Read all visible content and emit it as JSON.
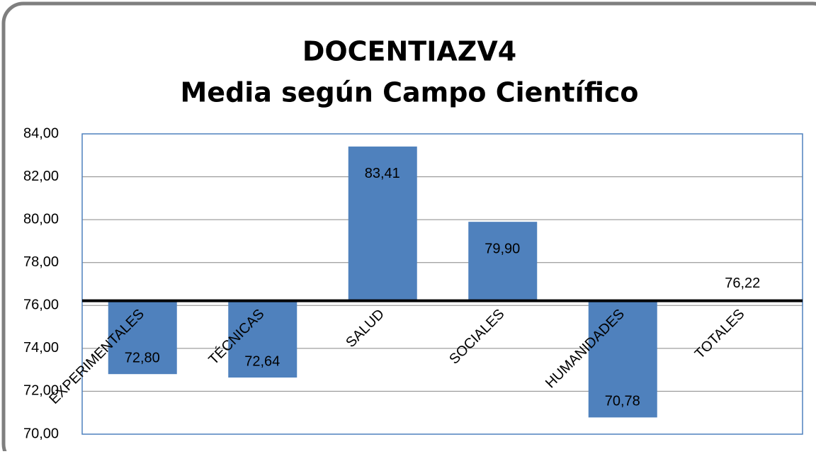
{
  "chart_data": {
    "type": "bar",
    "title": "DOCENTIAZV4",
    "subtitle": "Media según Campo Científico",
    "categories": [
      "EXPERIMENTALES",
      "TÉCNICAS",
      "SALUD",
      "SOCIALES",
      "HUMANIDADES",
      "TOTALES"
    ],
    "values": [
      72.8,
      72.64,
      83.41,
      79.9,
      70.78,
      76.22
    ],
    "value_labels": [
      "72,80",
      "72,64",
      "83,41",
      "79,90",
      "70,78",
      "76,22"
    ],
    "color": "#4f81bd",
    "baseline": 76.22,
    "ylim": [
      70,
      84
    ],
    "yticks": [
      {
        "value": 70,
        "label": "70,00"
      },
      {
        "value": 72,
        "label": "72,00"
      },
      {
        "value": 74,
        "label": "74,00"
      },
      {
        "value": 76,
        "label": "76,00"
      },
      {
        "value": 78,
        "label": "78,00"
      },
      {
        "value": 80,
        "label": "80,00"
      },
      {
        "value": 82,
        "label": "82,00"
      },
      {
        "value": 84,
        "label": "84,00"
      }
    ],
    "grid": true
  }
}
